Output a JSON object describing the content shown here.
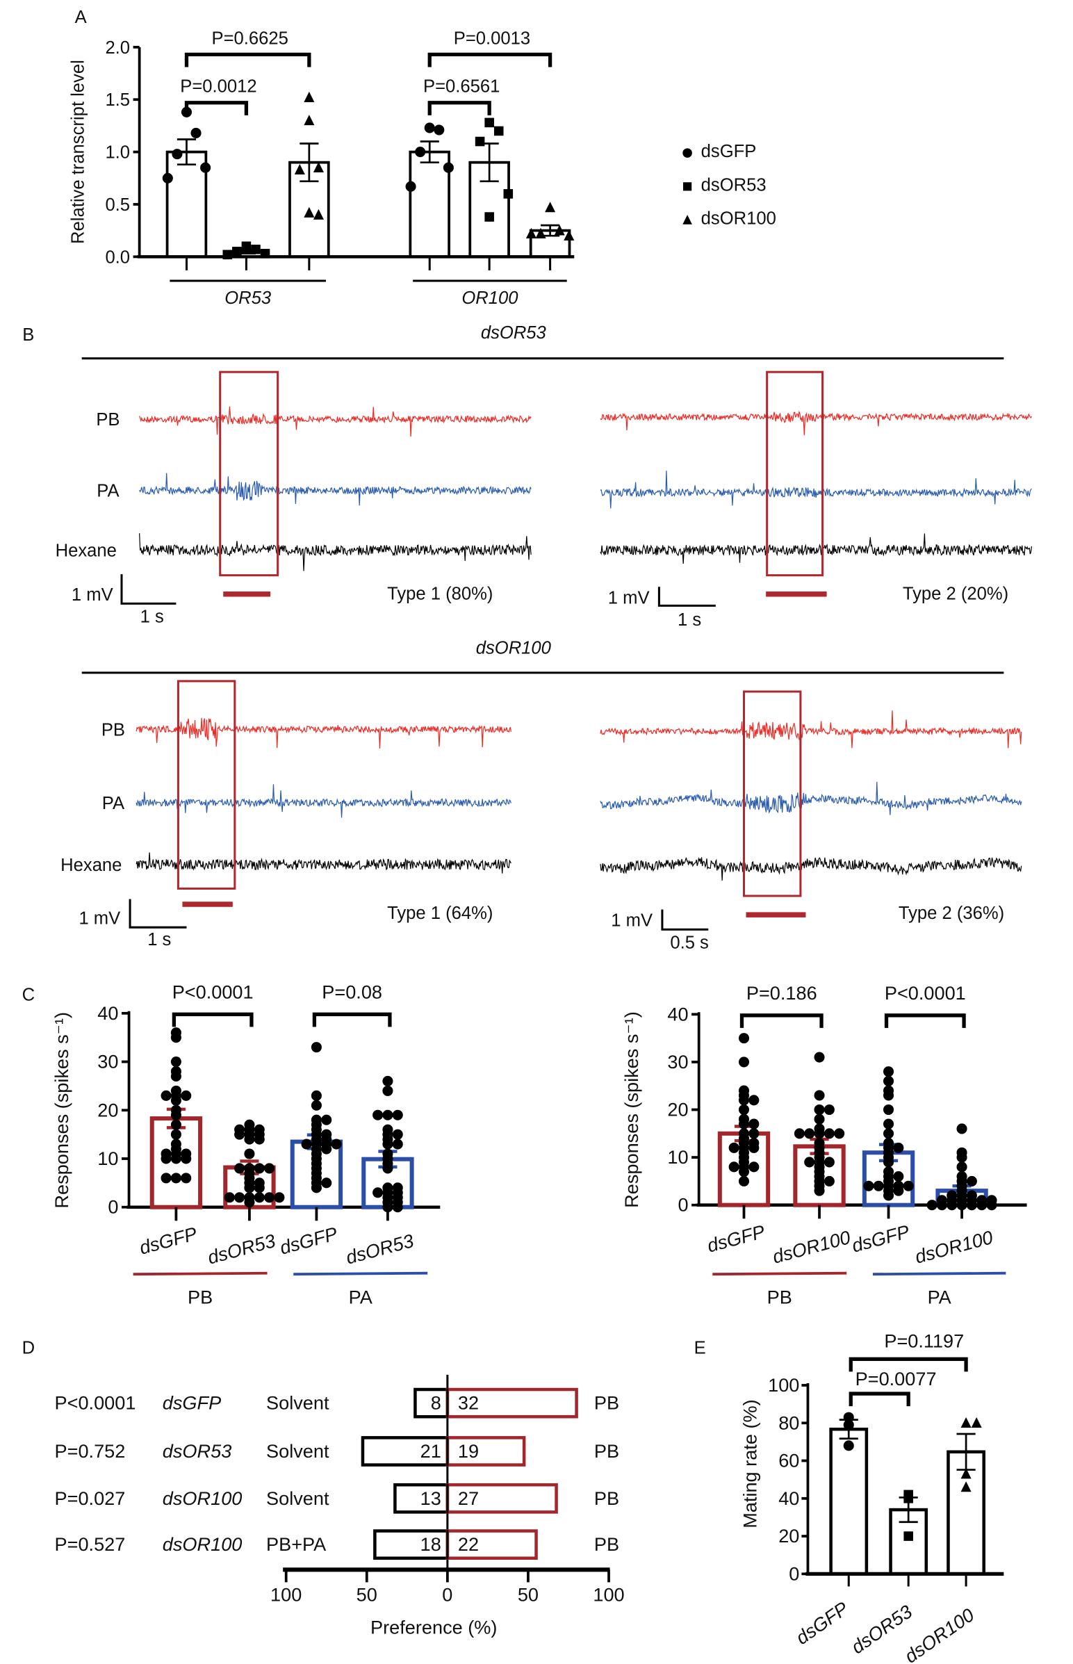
{
  "colors": {
    "pb": "#a3262c",
    "pa": "#2b4ea8",
    "hexane": "#000000",
    "pb_trace": "#ee2a24",
    "pa_trace": "#2a5cb0",
    "box": "#b0272d"
  },
  "panel_labels": [
    "A",
    "B",
    "C",
    "D",
    "E"
  ],
  "panel_B": {
    "sections": [
      {
        "title": "dsOR53",
        "recordings": [
          {
            "rows": [
              "PB",
              "PA",
              "Hexane"
            ],
            "voltage_scale": "1 mV",
            "time_scale": "1 s",
            "type_label": "Type 1 (80%)"
          },
          {
            "rows": [
              "PB",
              "PA",
              "Hexane"
            ],
            "voltage_scale": "1 mV",
            "time_scale": "1 s",
            "type_label": "Type 2 (20%)"
          }
        ]
      },
      {
        "title": "dsOR100",
        "recordings": [
          {
            "rows": [
              "PB",
              "PA",
              "Hexane"
            ],
            "voltage_scale": "1 mV",
            "time_scale": "1 s",
            "type_label": "Type 1 (64%)"
          },
          {
            "rows": [
              "PB",
              "PA",
              "Hexane"
            ],
            "voltage_scale": "1 mV",
            "time_scale": "0.5 s",
            "type_label": "Type 2 (36%)"
          }
        ]
      }
    ]
  },
  "chart_data": [
    {
      "panel": "A",
      "type": "bar",
      "ylabel": "Relative transcript level",
      "ylim": [
        0,
        2
      ],
      "yticks": [
        "0.0",
        "0.5",
        "1.0",
        "1.5",
        "2.0"
      ],
      "legend": [
        {
          "label": "dsGFP",
          "marker": "circle"
        },
        {
          "label": "dsOR53",
          "marker": "square"
        },
        {
          "label": "dsOR100",
          "marker": "triangle"
        }
      ],
      "legend_position": "right",
      "groups": [
        {
          "label": "OR53",
          "bars": [
            {
              "series": "dsGFP",
              "mean": 1.0,
              "sem": 0.12,
              "points": [
                1.38,
                1.18,
                0.98,
                0.85,
                0.75
              ]
            },
            {
              "series": "dsOR53",
              "mean": 0.05,
              "sem": 0.02,
              "points": [
                0.1,
                0.07,
                0.05,
                0.03,
                0.02
              ]
            },
            {
              "series": "dsOR100",
              "mean": 0.9,
              "sem": 0.18,
              "points": [
                1.52,
                1.3,
                0.85,
                0.83,
                0.42,
                0.4
              ]
            }
          ]
        },
        {
          "label": "OR100",
          "bars": [
            {
              "series": "dsGFP",
              "mean": 1.0,
              "sem": 0.1,
              "points": [
                1.23,
                1.21,
                1.0,
                0.85,
                0.67
              ]
            },
            {
              "series": "dsOR53",
              "mean": 0.9,
              "sem": 0.18,
              "points": [
                1.28,
                1.2,
                1.1,
                0.6,
                0.38
              ]
            },
            {
              "series": "dsOR100",
              "mean": 0.25,
              "sem": 0.05,
              "points": [
                0.47,
                0.25,
                0.22,
                0.2,
                0.22
              ]
            }
          ]
        }
      ],
      "comparisons": [
        {
          "group": "OR53",
          "between": [
            "dsGFP",
            "dsOR53"
          ],
          "label": "P=0.0012"
        },
        {
          "group": "OR53",
          "between": [
            "dsGFP",
            "dsOR100"
          ],
          "label": "P=0.6625"
        },
        {
          "group": "OR100",
          "between": [
            "dsGFP",
            "dsOR53"
          ],
          "label": "P=0.6561"
        },
        {
          "group": "OR100",
          "between": [
            "dsGFP",
            "dsOR100"
          ],
          "label": "P=0.0013"
        }
      ]
    },
    {
      "panel": "C-left",
      "type": "bar",
      "ylabel": "Responses (spikes s⁻¹)",
      "ylim": [
        0,
        40
      ],
      "yticks": [
        "0",
        "10",
        "20",
        "30",
        "40"
      ],
      "groups": [
        {
          "label": "PB",
          "bars": [
            {
              "series": "dsGFP",
              "mean": 18.3,
              "sem": 1.9,
              "points": [
                36,
                35,
                30,
                28,
                27,
                24,
                23,
                23,
                23,
                22,
                20,
                19,
                17,
                15,
                13,
                12,
                11,
                11,
                11,
                10,
                10,
                10,
                6,
                6,
                6
              ]
            },
            {
              "series": "dsOR53",
              "mean": 8.2,
              "sem": 1.3,
              "points": [
                17,
                16,
                16,
                16,
                15,
                15,
                15,
                14,
                14,
                11,
                8,
                8,
                8,
                8,
                7,
                6,
                5,
                5,
                4,
                4,
                2,
                2,
                2,
                2,
                2,
                2,
                1
              ]
            }
          ]
        },
        {
          "label": "PA",
          "bars": [
            {
              "series": "dsGFP",
              "mean": 13.5,
              "sem": 1.4,
              "points": [
                33,
                23,
                21,
                18,
                18,
                17,
                16,
                15,
                15,
                14,
                14,
                13,
                13,
                13,
                13,
                12,
                12,
                11,
                10,
                9,
                8,
                7,
                6,
                5,
                5,
                4
              ]
            },
            {
              "series": "dsOR53",
              "mean": 9.9,
              "sem": 1.6,
              "points": [
                26,
                24,
                19,
                19,
                19,
                16,
                15,
                15,
                14,
                13,
                13,
                11,
                10,
                9,
                8,
                4,
                4,
                3,
                3,
                3,
                2,
                2,
                1,
                1,
                0,
                0
              ]
            }
          ]
        }
      ],
      "comparisons": [
        {
          "group": "PB",
          "label": "P<0.0001"
        },
        {
          "group": "PA",
          "label": "P=0.08"
        }
      ]
    },
    {
      "panel": "C-right",
      "type": "bar",
      "ylabel": "Responses (spikes s⁻¹)",
      "ylim": [
        0,
        40
      ],
      "yticks": [
        "0",
        "10",
        "20",
        "30",
        "40"
      ],
      "groups": [
        {
          "label": "PB",
          "bars": [
            {
              "series": "dsGFP",
              "mean": 15.0,
              "sem": 1.5,
              "points": [
                35,
                30,
                24,
                23,
                22,
                22,
                20,
                18,
                17,
                17,
                15,
                15,
                14,
                13,
                13,
                12,
                12,
                12,
                11,
                10,
                9,
                8,
                8,
                8,
                7,
                5
              ]
            },
            {
              "series": "dsOR100",
              "mean": 12.3,
              "sem": 1.5,
              "points": [
                31,
                23,
                20,
                20,
                18,
                16,
                15,
                15,
                15,
                15,
                15,
                13,
                12,
                11,
                10,
                9,
                9,
                9,
                8,
                7,
                6,
                5,
                5,
                4,
                3
              ]
            }
          ]
        },
        {
          "label": "PA",
          "bars": [
            {
              "series": "dsGFP",
              "mean": 11.0,
              "sem": 1.7,
              "points": [
                28,
                26,
                24,
                23,
                20,
                17,
                15,
                13,
                12,
                12,
                11,
                10,
                9,
                7,
                6,
                6,
                5,
                4,
                4,
                4,
                4,
                4,
                3,
                3,
                2
              ]
            },
            {
              "series": "dsOR100",
              "mean": 3.0,
              "sem": 1.0,
              "points": [
                16,
                11,
                10,
                8,
                6,
                5,
                5,
                4,
                3,
                2,
                2,
                2,
                1,
                1,
                1,
                1,
                1,
                1,
                0,
                0,
                0,
                0,
                0,
                0,
                0
              ]
            }
          ]
        }
      ],
      "comparisons": [
        {
          "group": "PB",
          "label": "P=0.186"
        },
        {
          "group": "PA",
          "label": "P<0.0001"
        }
      ]
    },
    {
      "panel": "D",
      "type": "bar",
      "orientation": "horizontal-diverging",
      "xlabel": "Preference (%)",
      "xlim": [
        -100,
        100
      ],
      "xticks": [
        "100",
        "50",
        "0",
        "50",
        "100"
      ],
      "rows": [
        {
          "p": "P<0.0001",
          "genotype": "dsGFP",
          "left_stimulus": "Solvent",
          "right_stimulus": "PB",
          "left_count": 8,
          "right_count": 32
        },
        {
          "p": "P=0.752",
          "genotype": "dsOR53",
          "left_stimulus": "Solvent",
          "right_stimulus": "PB",
          "left_count": 21,
          "right_count": 19
        },
        {
          "p": "P=0.027",
          "genotype": "dsOR100",
          "left_stimulus": "Solvent",
          "right_stimulus": "PB",
          "left_count": 13,
          "right_count": 27
        },
        {
          "p": "P=0.527",
          "genotype": "dsOR100",
          "left_stimulus": "PB+PA",
          "right_stimulus": "PB",
          "left_count": 18,
          "right_count": 22
        }
      ]
    },
    {
      "panel": "E",
      "type": "bar",
      "ylabel": "Mating rate (%)",
      "ylim": [
        0,
        100
      ],
      "yticks": [
        "0",
        "20",
        "40",
        "60",
        "80",
        "100"
      ],
      "bars": [
        {
          "series": "dsGFP",
          "marker": "circle",
          "mean": 76.7,
          "sem": 5.0,
          "points": [
            83,
            79,
            68
          ]
        },
        {
          "series": "dsOR53",
          "marker": "square",
          "mean": 34,
          "sem": 6.5,
          "points": [
            42,
            40,
            20
          ]
        },
        {
          "series": "dsOR100",
          "marker": "triangle",
          "mean": 64.7,
          "sem": 9.5,
          "points": [
            80,
            80,
            53,
            46
          ]
        }
      ],
      "comparisons": [
        {
          "between": [
            "dsGFP",
            "dsOR53"
          ],
          "label": "P=0.0077"
        },
        {
          "between": [
            "dsGFP",
            "dsOR100"
          ],
          "label": "P=0.1197"
        }
      ]
    }
  ]
}
